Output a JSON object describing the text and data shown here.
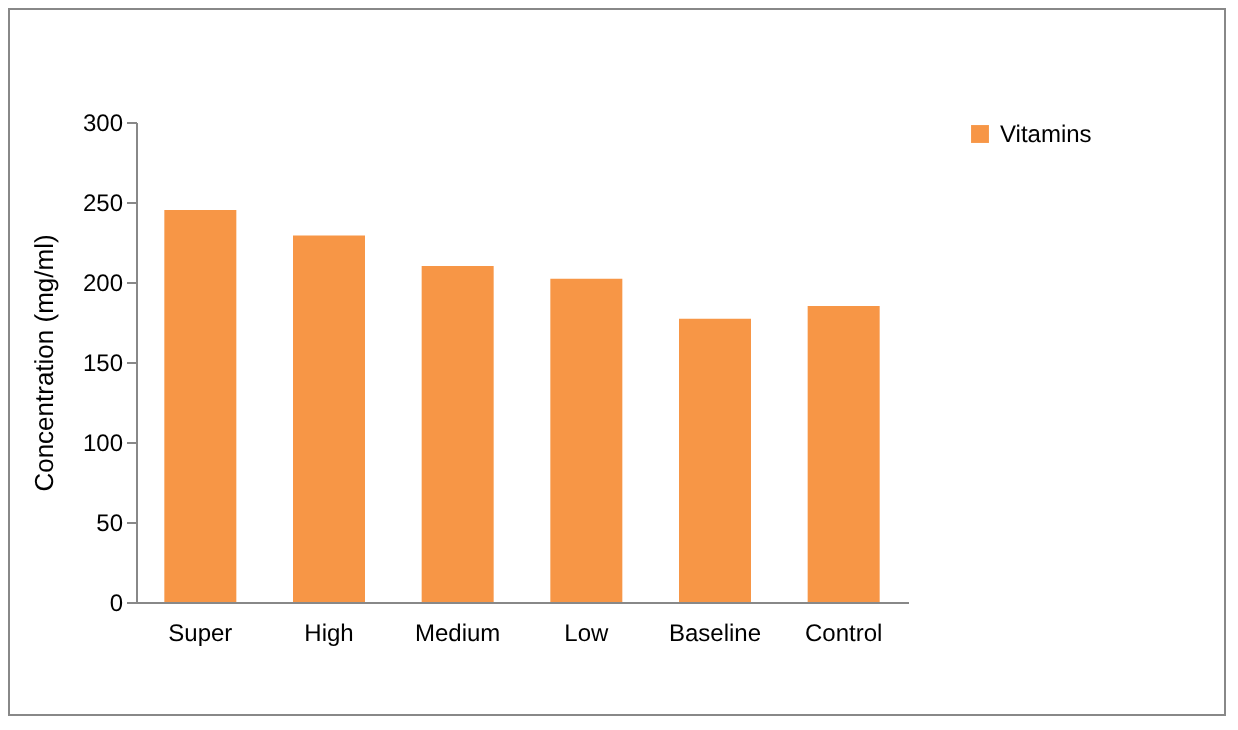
{
  "chart_data": {
    "type": "bar",
    "ylabel": "Concentration  (mg/ml)",
    "categories": [
      "Super",
      "High",
      "Medium",
      "Low",
      "Baseline",
      "Control"
    ],
    "series": [
      {
        "name": "Vitamins",
        "color": "#f79646",
        "values": [
          245,
          229,
          210,
          202,
          177,
          185
        ]
      }
    ],
    "ylim": [
      0,
      300
    ],
    "yticks": [
      0,
      50,
      100,
      150,
      200,
      250,
      300
    ],
    "grid": false,
    "legend": "right"
  }
}
